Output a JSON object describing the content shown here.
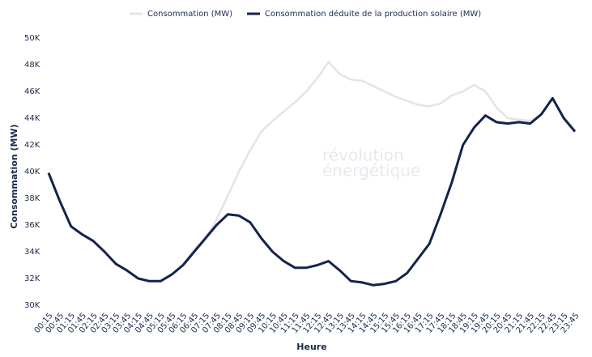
{
  "chart_data": {
    "type": "line",
    "watermark": [
      "révolution",
      "énergétique"
    ],
    "x_label": "Heure",
    "y_label": "Consommation (MW)",
    "categories": [
      "00:15",
      "00:45",
      "01:15",
      "01:45",
      "02:15",
      "02:45",
      "03:15",
      "03:45",
      "04:15",
      "04:45",
      "05:15",
      "05:45",
      "06:15",
      "06:45",
      "07:15",
      "07:45",
      "08:15",
      "08:45",
      "09:15",
      "09:45",
      "10:15",
      "10:45",
      "11:15",
      "11:45",
      "12:15",
      "12:45",
      "13:15",
      "13:45",
      "14:15",
      "14:45",
      "15:15",
      "15:45",
      "16:15",
      "16:45",
      "17:15",
      "17:45",
      "18:15",
      "18:45",
      "19:15",
      "19:45",
      "20:15",
      "20:45",
      "21:15",
      "21:45",
      "22:15",
      "22:45",
      "23:15",
      "23:45"
    ],
    "series": [
      {
        "name": "Consommation (MW)",
        "color": "#e4e4e4",
        "values": [
          39900,
          37800,
          35900,
          35300,
          34800,
          34000,
          33100,
          32600,
          32000,
          31800,
          31800,
          32300,
          33000,
          34200,
          35000,
          36400,
          38200,
          40000,
          41600,
          43000,
          43800,
          44500,
          45200,
          46000,
          47000,
          48200,
          47300,
          46900,
          46800,
          46400,
          46000,
          45600,
          45300,
          45000,
          44900,
          45100,
          45700,
          46000,
          46500,
          46000,
          44800,
          44000,
          43900,
          43800,
          44300,
          45500,
          44000,
          43000
        ]
      },
      {
        "name": "Consommation déduite de la production solaire (MW)",
        "color": "#14234b",
        "values": [
          39900,
          37800,
          35900,
          35300,
          34800,
          34000,
          33100,
          32600,
          32000,
          31800,
          31800,
          32300,
          33000,
          34000,
          35000,
          36000,
          36800,
          36700,
          36200,
          35000,
          34000,
          33300,
          32800,
          32800,
          33000,
          33300,
          32600,
          31800,
          31700,
          31500,
          31600,
          31800,
          32400,
          33500,
          34600,
          36800,
          39200,
          42000,
          43300,
          44200,
          43700,
          43600,
          43700,
          43600,
          44300,
          45500,
          44000,
          43000
        ]
      }
    ],
    "ylim": [
      30000,
      50000
    ],
    "yticks": [
      {
        "value": 30000,
        "label": "30K"
      },
      {
        "value": 32000,
        "label": "32K"
      },
      {
        "value": 34000,
        "label": "34K"
      },
      {
        "value": 36000,
        "label": "36K"
      },
      {
        "value": 38000,
        "label": "38K"
      },
      {
        "value": 40000,
        "label": "40K"
      },
      {
        "value": 42000,
        "label": "42K"
      },
      {
        "value": 44000,
        "label": "44K"
      },
      {
        "value": 46000,
        "label": "46K"
      },
      {
        "value": 48000,
        "label": "48K"
      },
      {
        "value": 50000,
        "label": "50K"
      }
    ],
    "legend": "top"
  }
}
